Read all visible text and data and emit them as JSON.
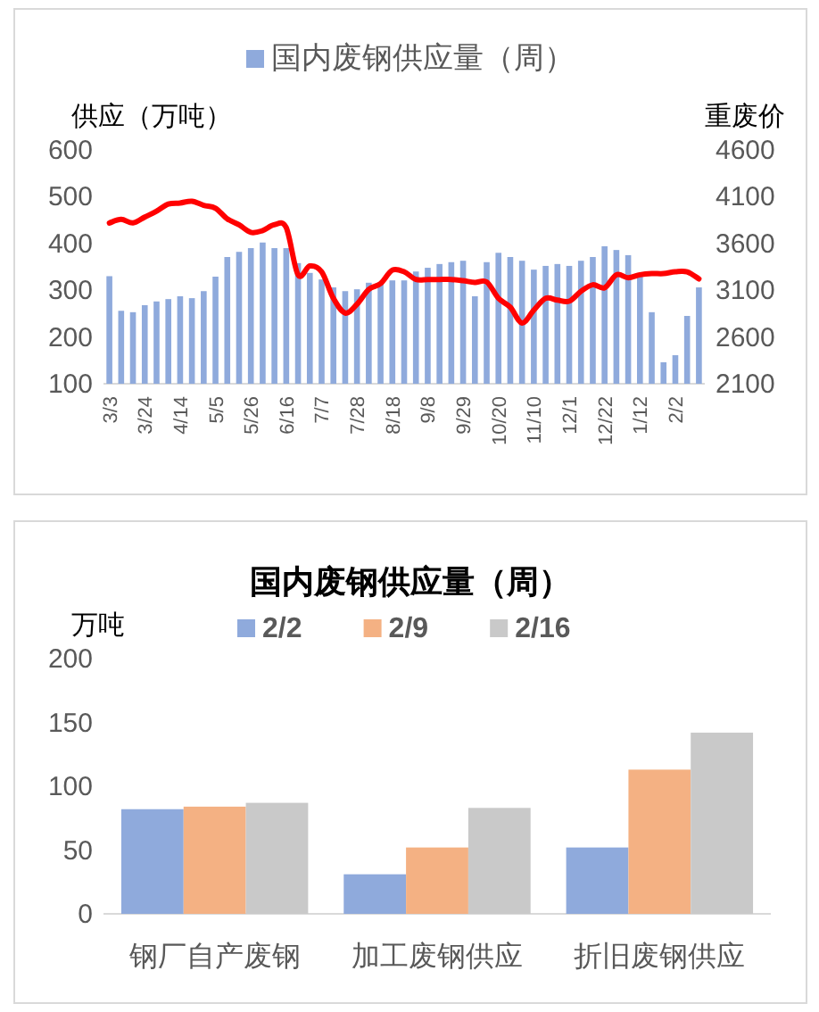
{
  "chart_data": [
    {
      "type": "bar",
      "categories": [
        "3/3",
        null,
        null,
        "3/24",
        null,
        null,
        "4/14",
        null,
        null,
        "5/5",
        null,
        null,
        "5/26",
        null,
        null,
        "6/16",
        null,
        null,
        "7/7",
        null,
        null,
        "7/28",
        null,
        null,
        "8/18",
        null,
        null,
        "9/8",
        null,
        null,
        "9/29",
        null,
        null,
        "10/20",
        null,
        null,
        "11/10",
        null,
        null,
        "12/1",
        null,
        null,
        "12/22",
        null,
        null,
        "1/12",
        null,
        null,
        "2/2",
        null,
        null
      ],
      "series": [
        {
          "name": "国内废钢供应量（周）",
          "color": "#8faadc",
          "values": [
            330,
            256,
            253,
            268,
            276,
            281,
            287,
            283,
            298,
            329,
            371,
            382,
            390,
            402,
            390,
            390,
            358,
            337,
            323,
            306,
            298,
            302,
            316,
            316,
            321,
            321,
            340,
            348,
            356,
            360,
            363,
            287,
            360,
            380,
            371,
            363,
            344,
            352,
            356,
            352,
            363,
            371,
            394,
            386,
            375,
            329,
            253,
            146,
            161,
            245,
            306
          ]
        },
        {
          "type": "line",
          "axis": "y2",
          "color": "#ff0000",
          "values": [
            3819,
            3857,
            3819,
            3882,
            3945,
            4021,
            4033,
            4052,
            4008,
            3977,
            3863,
            3800,
            3718,
            3737,
            3800,
            3769,
            3265,
            3359,
            3297,
            3013,
            2856,
            2950,
            3108,
            3171,
            3315,
            3297,
            3215,
            3215,
            3215,
            3215,
            3202,
            3183,
            3189,
            3013,
            2919,
            2749,
            2887,
            3013,
            2994,
            2982,
            3089,
            3158,
            3126,
            3265,
            3234,
            3265,
            3278,
            3278,
            3297,
            3297,
            3221
          ]
        }
      ],
      "ylabel": "供应（万吨）",
      "y2label": "重废价",
      "ylim": [
        100,
        600
      ],
      "yticks": [
        100,
        200,
        300,
        400,
        500,
        600
      ],
      "y2lim": [
        2100,
        4600
      ],
      "y2ticks": [
        2100,
        2600,
        3100,
        3600,
        4100,
        4600
      ],
      "legend": "top",
      "grid": false
    },
    {
      "type": "bar",
      "title": "国内废钢供应量（周）",
      "categories": [
        "钢厂自产废钢",
        "加工废钢供应",
        "折旧废钢供应"
      ],
      "series": [
        {
          "name": "2/2",
          "color": "#8faadc",
          "values": [
            82,
            31,
            52
          ]
        },
        {
          "name": "2/9",
          "color": "#f4b183",
          "values": [
            84,
            52,
            113
          ]
        },
        {
          "name": "2/16",
          "color": "#c9c9c9",
          "values": [
            87,
            83,
            142
          ]
        }
      ],
      "ylabel": "万吨",
      "ylim": [
        0,
        200
      ],
      "yticks": [
        0,
        50,
        100,
        150,
        200
      ],
      "legend": "top",
      "grid": false
    }
  ]
}
